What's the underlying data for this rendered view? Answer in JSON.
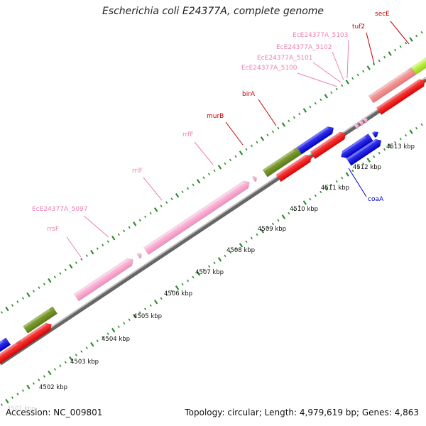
{
  "title": "Escherichia coli E24377A, complete genome",
  "footer": {
    "accession": "Accession: NC_009801",
    "summary": "Topology: circular; Length: 4,979,619 bp; Genes: 4,863"
  },
  "colors": {
    "background": "#ffffff",
    "backbone": "#8c8c8c",
    "tick": "#2e8b2e",
    "rrna": "#f4a3c9",
    "cds_forward": "#ee1111",
    "cds_reverse": "#1111dd",
    "trna": "#f4a3c9",
    "olive": "#6b8a23",
    "salmon": "#f08a8a",
    "lime": "#a8e62a",
    "label_red": "#cc0000",
    "label_blue": "#0000cc",
    "label_pink": "#ee7fb0"
  },
  "scale": {
    "unit": "kbp",
    "ticks": [
      {
        "label": "4501 kbp"
      },
      {
        "label": "4502 kbp"
      },
      {
        "label": "4503 kbp"
      },
      {
        "label": "4504 kbp"
      },
      {
        "label": "4505 kbp"
      },
      {
        "label": "4506 kbp"
      },
      {
        "label": "4507 kbp"
      },
      {
        "label": "4508 kbp"
      },
      {
        "label": "4509 kbp"
      },
      {
        "label": "4510 kbp"
      },
      {
        "label": "4511 kbp"
      },
      {
        "label": "4512 kbp"
      },
      {
        "label": "4513 kbp"
      }
    ]
  },
  "features": [
    {
      "name": "rrsF",
      "type": "rRNA"
    },
    {
      "name": "EcE24377A_5097",
      "type": "tRNA"
    },
    {
      "name": "rrlF",
      "type": "rRNA"
    },
    {
      "name": "rrfF",
      "type": "rRNA"
    },
    {
      "name": "murB",
      "type": "CDS"
    },
    {
      "name": "birA",
      "type": "CDS"
    },
    {
      "name": "EcE24377A_5100",
      "type": "tRNA"
    },
    {
      "name": "EcE24377A_5101",
      "type": "tRNA"
    },
    {
      "name": "EcE24377A_5102",
      "type": "tRNA"
    },
    {
      "name": "EcE24377A_5103",
      "type": "tRNA"
    },
    {
      "name": "tuf2",
      "type": "CDS"
    },
    {
      "name": "secE",
      "type": "CDS"
    },
    {
      "name": "coaA",
      "type": "CDS"
    }
  ]
}
